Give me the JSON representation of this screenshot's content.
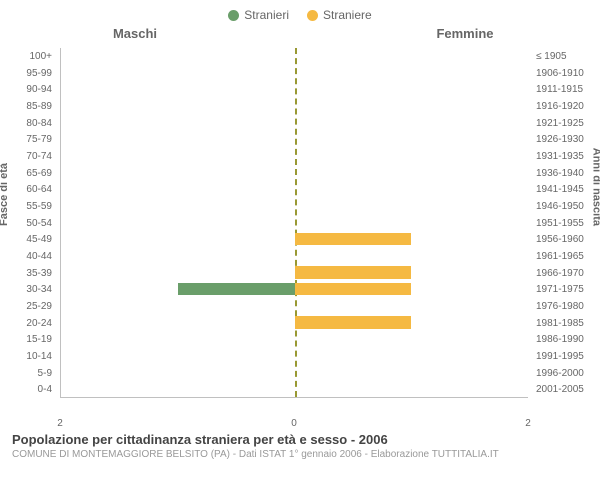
{
  "legend": {
    "male_label": "Stranieri",
    "female_label": "Straniere",
    "male_color": "#6a9e6a",
    "female_color": "#f5b942"
  },
  "columns": {
    "male": "Maschi",
    "female": "Femmine"
  },
  "axis": {
    "left_title": "Fasce di età",
    "right_title": "Anni di nascita"
  },
  "x": {
    "max": 2,
    "ticks": [
      {
        "pos": 0,
        "label": "2"
      },
      {
        "pos": 50,
        "label": "0"
      },
      {
        "pos": 100,
        "label": "2"
      }
    ]
  },
  "rows": [
    {
      "age": "100+",
      "birth": "≤ 1905",
      "m": 0,
      "f": 0
    },
    {
      "age": "95-99",
      "birth": "1906-1910",
      "m": 0,
      "f": 0
    },
    {
      "age": "90-94",
      "birth": "1911-1915",
      "m": 0,
      "f": 0
    },
    {
      "age": "85-89",
      "birth": "1916-1920",
      "m": 0,
      "f": 0
    },
    {
      "age": "80-84",
      "birth": "1921-1925",
      "m": 0,
      "f": 0
    },
    {
      "age": "75-79",
      "birth": "1926-1930",
      "m": 0,
      "f": 0
    },
    {
      "age": "70-74",
      "birth": "1931-1935",
      "m": 0,
      "f": 0
    },
    {
      "age": "65-69",
      "birth": "1936-1940",
      "m": 0,
      "f": 0
    },
    {
      "age": "60-64",
      "birth": "1941-1945",
      "m": 0,
      "f": 0
    },
    {
      "age": "55-59",
      "birth": "1946-1950",
      "m": 0,
      "f": 0
    },
    {
      "age": "50-54",
      "birth": "1951-1955",
      "m": 0,
      "f": 0
    },
    {
      "age": "45-49",
      "birth": "1956-1960",
      "m": 0,
      "f": 1
    },
    {
      "age": "40-44",
      "birth": "1961-1965",
      "m": 0,
      "f": 0
    },
    {
      "age": "35-39",
      "birth": "1966-1970",
      "m": 0,
      "f": 1
    },
    {
      "age": "30-34",
      "birth": "1971-1975",
      "m": 1,
      "f": 1
    },
    {
      "age": "25-29",
      "birth": "1976-1980",
      "m": 0,
      "f": 0
    },
    {
      "age": "20-24",
      "birth": "1981-1985",
      "m": 0,
      "f": 1
    },
    {
      "age": "15-19",
      "birth": "1986-1990",
      "m": 0,
      "f": 0
    },
    {
      "age": "10-14",
      "birth": "1991-1995",
      "m": 0,
      "f": 0
    },
    {
      "age": "5-9",
      "birth": "1996-2000",
      "m": 0,
      "f": 0
    },
    {
      "age": "0-4",
      "birth": "2001-2005",
      "m": 0,
      "f": 0
    }
  ],
  "footer": {
    "title": "Popolazione per cittadinanza straniera per età e sesso - 2006",
    "subtitle": "COMUNE DI MONTEMAGGIORE BELSITO (PA) - Dati ISTAT 1° gennaio 2006 - Elaborazione TUTTITALIA.IT"
  },
  "style": {
    "background_color": "#ffffff",
    "tick_color": "#666666",
    "center_line_color": "#999933",
    "grid_color": "#c0c0c0"
  }
}
